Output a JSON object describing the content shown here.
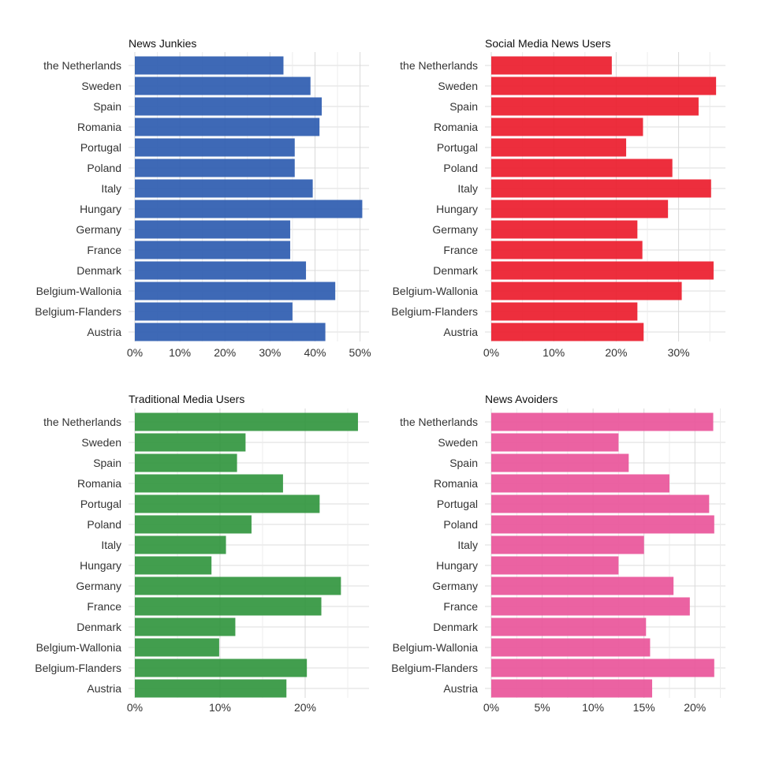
{
  "chart_data": [
    {
      "type": "bar",
      "orientation": "horizontal",
      "title": "News Junkies",
      "color": "#2e5cb0",
      "categories": [
        "the Netherlands",
        "Sweden",
        "Spain",
        "Romania",
        "Portugal",
        "Poland",
        "Italy",
        "Hungary",
        "Germany",
        "France",
        "Denmark",
        "Belgium-Wallonia",
        "Belgium-Flanders",
        "Austria"
      ],
      "values": [
        33,
        39,
        41.5,
        41,
        35.5,
        35.5,
        39.5,
        50.5,
        34.5,
        34.5,
        38,
        44.5,
        35,
        42.3
      ],
      "xlim": [
        0,
        52
      ],
      "xticks": [
        0,
        10,
        20,
        30,
        40,
        50
      ],
      "tick_labels": [
        "0%",
        "10%",
        "20%",
        "30%",
        "40%",
        "50%"
      ],
      "grid": true
    },
    {
      "type": "bar",
      "orientation": "horizontal",
      "title": "Social Media News Users",
      "color": "#ec1c2d",
      "categories": [
        "the Netherlands",
        "Sweden",
        "Spain",
        "Romania",
        "Portugal",
        "Poland",
        "Italy",
        "Hungary",
        "Germany",
        "France",
        "Denmark",
        "Belgium-Wallonia",
        "Belgium-Flanders",
        "Austria"
      ],
      "values": [
        19.3,
        36,
        33.2,
        24.3,
        21.6,
        29,
        35.2,
        28.3,
        23.4,
        24.2,
        35.6,
        30.5,
        23.4,
        24.4
      ],
      "xlim": [
        0,
        37.5
      ],
      "xticks": [
        0,
        10,
        20,
        30
      ],
      "tick_labels": [
        "0%",
        "10%",
        "20%",
        "30%"
      ],
      "grid": true
    },
    {
      "type": "bar",
      "orientation": "horizontal",
      "title": "Traditional Media Users",
      "color": "#32963f",
      "categories": [
        "the Netherlands",
        "Sweden",
        "Spain",
        "Romania",
        "Portugal",
        "Poland",
        "Italy",
        "Hungary",
        "Germany",
        "France",
        "Denmark",
        "Belgium-Wallonia",
        "Belgium-Flanders",
        "Austria"
      ],
      "values": [
        26.2,
        13,
        12,
        17.4,
        21.7,
        13.7,
        10.7,
        9,
        24.2,
        21.9,
        11.8,
        9.9,
        20.2,
        17.8
      ],
      "xlim": [
        0,
        27.5
      ],
      "xticks": [
        0,
        10,
        20
      ],
      "tick_labels": [
        "0%",
        "10%",
        "20%"
      ],
      "grid": true
    },
    {
      "type": "bar",
      "orientation": "horizontal",
      "title": "News Avoiders",
      "color": "#e9559a",
      "categories": [
        "the Netherlands",
        "Sweden",
        "Spain",
        "Romania",
        "Portugal",
        "Poland",
        "Italy",
        "Hungary",
        "Germany",
        "France",
        "Denmark",
        "Belgium-Wallonia",
        "Belgium-Flanders",
        "Austria"
      ],
      "values": [
        21.8,
        12.5,
        13.5,
        17.5,
        21.4,
        21.9,
        15,
        12.5,
        17.9,
        19.5,
        15.2,
        15.6,
        21.9,
        15.8
      ],
      "xlim": [
        0,
        23
      ],
      "xticks": [
        0,
        5,
        10,
        15,
        20
      ],
      "tick_labels": [
        "0%",
        "5%",
        "10%",
        "15%",
        "20%"
      ],
      "grid": true
    }
  ]
}
